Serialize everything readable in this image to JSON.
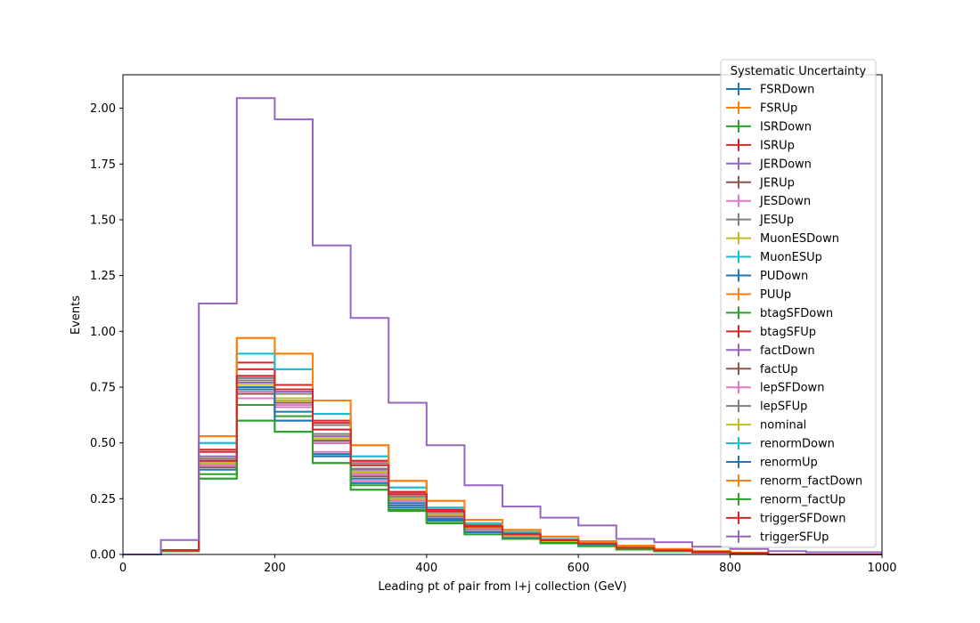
{
  "chart_data": {
    "type": "line",
    "title": "",
    "xlabel": "Leading pt of pair from l+j collection (GeV)",
    "ylabel": "Events",
    "xlim": [
      0,
      1000
    ],
    "ylim": [
      0,
      2.15
    ],
    "x_ticks": [
      0,
      200,
      400,
      600,
      800,
      1000
    ],
    "x_tick_labels": [
      "0",
      "200",
      "400",
      "600",
      "800",
      "1000"
    ],
    "y_ticks": [
      0,
      0.25,
      0.5,
      0.75,
      1.0,
      1.25,
      1.5,
      1.75,
      2.0
    ],
    "y_tick_labels": [
      "0.00",
      "0.25",
      "0.50",
      "0.75",
      "1.00",
      "1.25",
      "1.50",
      "1.75",
      "2.00"
    ],
    "grid": false,
    "legend_title": "Systematic Uncertainty",
    "legend_position": "upper-right",
    "bin_edges": [
      0,
      50,
      100,
      150,
      200,
      250,
      300,
      350,
      400,
      450,
      500,
      550,
      600,
      650,
      700,
      750,
      800,
      850,
      900,
      950,
      1000
    ],
    "series": [
      {
        "name": "FSRDown",
        "color": "#1f77b4",
        "values": [
          0,
          0.02,
          0.42,
          0.74,
          0.64,
          0.5,
          0.34,
          0.23,
          0.18,
          0.11,
          0.08,
          0.06,
          0.04,
          0.025,
          0.015,
          0.01,
          0.005,
          0,
          0,
          0
        ]
      },
      {
        "name": "FSRUp",
        "color": "#ff7f0e",
        "values": [
          0,
          0.02,
          0.41,
          0.76,
          0.7,
          0.52,
          0.37,
          0.25,
          0.18,
          0.12,
          0.085,
          0.06,
          0.045,
          0.03,
          0.02,
          0.012,
          0.006,
          0,
          0,
          0
        ]
      },
      {
        "name": "ISRDown",
        "color": "#2ca02c",
        "values": [
          0,
          0.015,
          0.36,
          0.67,
          0.62,
          0.45,
          0.31,
          0.21,
          0.15,
          0.1,
          0.075,
          0.055,
          0.04,
          0.025,
          0.015,
          0.01,
          0.005,
          0,
          0,
          0
        ]
      },
      {
        "name": "ISRUp",
        "color": "#d62728",
        "values": [
          0,
          0.02,
          0.46,
          0.83,
          0.76,
          0.59,
          0.42,
          0.28,
          0.2,
          0.13,
          0.095,
          0.07,
          0.05,
          0.03,
          0.02,
          0.012,
          0.006,
          0,
          0,
          0
        ]
      },
      {
        "name": "JERDown",
        "color": "#9467bd",
        "values": [
          0,
          0.02,
          0.44,
          0.8,
          0.73,
          0.56,
          0.4,
          0.27,
          0.2,
          0.13,
          0.09,
          0.065,
          0.05,
          0.03,
          0.02,
          0.012,
          0.006,
          0,
          0,
          0
        ]
      },
      {
        "name": "JERUp",
        "color": "#8c564b",
        "values": [
          0,
          0.02,
          0.39,
          0.72,
          0.68,
          0.5,
          0.35,
          0.24,
          0.17,
          0.11,
          0.08,
          0.06,
          0.045,
          0.025,
          0.015,
          0.01,
          0.005,
          0,
          0,
          0
        ]
      },
      {
        "name": "JESDown",
        "color": "#e377c2",
        "values": [
          0,
          0.02,
          0.4,
          0.7,
          0.66,
          0.46,
          0.33,
          0.22,
          0.16,
          0.1,
          0.075,
          0.055,
          0.04,
          0.025,
          0.015,
          0.01,
          0.005,
          0,
          0,
          0
        ]
      },
      {
        "name": "JESUp",
        "color": "#7f7f7f",
        "values": [
          0,
          0.02,
          0.43,
          0.79,
          0.76,
          0.58,
          0.41,
          0.28,
          0.2,
          0.13,
          0.09,
          0.065,
          0.05,
          0.03,
          0.02,
          0.012,
          0.006,
          0,
          0,
          0
        ]
      },
      {
        "name": "MuonESDown",
        "color": "#bcbd22",
        "values": [
          0,
          0.02,
          0.41,
          0.76,
          0.69,
          0.52,
          0.37,
          0.25,
          0.18,
          0.12,
          0.085,
          0.06,
          0.045,
          0.028,
          0.018,
          0.011,
          0.006,
          0,
          0,
          0
        ]
      },
      {
        "name": "MuonESUp",
        "color": "#17becf",
        "values": [
          0,
          0.02,
          0.5,
          0.9,
          0.83,
          0.63,
          0.44,
          0.3,
          0.21,
          0.13,
          0.1,
          0.07,
          0.055,
          0.035,
          0.02,
          0.013,
          0.007,
          0,
          0,
          0
        ]
      },
      {
        "name": "PUDown",
        "color": "#1f77b4",
        "values": [
          0,
          0.02,
          0.42,
          0.75,
          0.6,
          0.45,
          0.32,
          0.22,
          0.16,
          0.1,
          0.075,
          0.055,
          0.04,
          0.025,
          0.015,
          0.01,
          0.005,
          0,
          0,
          0
        ]
      },
      {
        "name": "PUUp",
        "color": "#ff7f0e",
        "values": [
          0,
          0.02,
          0.53,
          0.97,
          0.9,
          0.69,
          0.49,
          0.33,
          0.24,
          0.155,
          0.11,
          0.08,
          0.06,
          0.04,
          0.025,
          0.015,
          0.008,
          0,
          0,
          0
        ]
      },
      {
        "name": "btagSFDown",
        "color": "#2ca02c",
        "values": [
          0,
          0.015,
          0.34,
          0.6,
          0.55,
          0.41,
          0.29,
          0.195,
          0.14,
          0.09,
          0.07,
          0.05,
          0.038,
          0.022,
          0.014,
          0.009,
          0.005,
          0,
          0,
          0
        ]
      },
      {
        "name": "btagSFUp",
        "color": "#d62728",
        "values": [
          0,
          0.02,
          0.47,
          0.86,
          0.76,
          0.6,
          0.42,
          0.28,
          0.2,
          0.13,
          0.095,
          0.07,
          0.05,
          0.03,
          0.02,
          0.012,
          0.006,
          0,
          0,
          0
        ]
      },
      {
        "name": "factDown",
        "color": "#9467bd",
        "values": [
          0,
          0.02,
          0.42,
          0.77,
          0.7,
          0.53,
          0.38,
          0.26,
          0.19,
          0.12,
          0.085,
          0.06,
          0.045,
          0.028,
          0.018,
          0.011,
          0.006,
          0,
          0,
          0
        ]
      },
      {
        "name": "factUp",
        "color": "#8c564b",
        "values": [
          0,
          0.02,
          0.4,
          0.74,
          0.68,
          0.51,
          0.36,
          0.25,
          0.18,
          0.115,
          0.082,
          0.058,
          0.043,
          0.027,
          0.017,
          0.011,
          0.006,
          0,
          0,
          0
        ]
      },
      {
        "name": "lepSFDown",
        "color": "#e377c2",
        "values": [
          0,
          0.02,
          0.4,
          0.73,
          0.67,
          0.5,
          0.36,
          0.24,
          0.175,
          0.11,
          0.08,
          0.058,
          0.043,
          0.027,
          0.017,
          0.011,
          0.006,
          0,
          0,
          0
        ]
      },
      {
        "name": "lepSFUp",
        "color": "#7f7f7f",
        "values": [
          0,
          0.02,
          0.42,
          0.78,
          0.72,
          0.54,
          0.385,
          0.26,
          0.19,
          0.12,
          0.087,
          0.062,
          0.046,
          0.029,
          0.018,
          0.011,
          0.006,
          0,
          0,
          0
        ]
      },
      {
        "name": "nominal",
        "color": "#bcbd22",
        "values": [
          0,
          0.02,
          0.41,
          0.76,
          0.7,
          0.52,
          0.37,
          0.25,
          0.18,
          0.12,
          0.085,
          0.06,
          0.045,
          0.028,
          0.018,
          0.011,
          0.006,
          0,
          0,
          0
        ]
      },
      {
        "name": "renormDown",
        "color": "#17becf",
        "values": [
          0,
          0.02,
          0.5,
          0.9,
          0.83,
          0.63,
          0.44,
          0.3,
          0.21,
          0.14,
          0.1,
          0.07,
          0.055,
          0.034,
          0.021,
          0.013,
          0.007,
          0,
          0,
          0
        ]
      },
      {
        "name": "renormUp",
        "color": "#1f77b4",
        "values": [
          0,
          0.02,
          0.38,
          0.74,
          0.6,
          0.44,
          0.32,
          0.21,
          0.155,
          0.1,
          0.073,
          0.052,
          0.039,
          0.024,
          0.015,
          0.009,
          0.005,
          0,
          0,
          0
        ]
      },
      {
        "name": "renorm_factDown",
        "color": "#ff7f0e",
        "values": [
          0,
          0.02,
          0.53,
          0.97,
          0.9,
          0.69,
          0.49,
          0.33,
          0.24,
          0.155,
          0.11,
          0.08,
          0.06,
          0.038,
          0.024,
          0.015,
          0.008,
          0,
          0,
          0
        ]
      },
      {
        "name": "renorm_factUp",
        "color": "#2ca02c",
        "values": [
          0,
          0.015,
          0.34,
          0.6,
          0.55,
          0.41,
          0.29,
          0.2,
          0.14,
          0.09,
          0.07,
          0.05,
          0.037,
          0.022,
          0.014,
          0.009,
          0.005,
          0,
          0,
          0
        ]
      },
      {
        "name": "triggerSFDown",
        "color": "#d62728",
        "values": [
          0,
          0.02,
          0.42,
          0.8,
          0.74,
          0.56,
          0.4,
          0.27,
          0.195,
          0.125,
          0.09,
          0.064,
          0.048,
          0.03,
          0.019,
          0.012,
          0.006,
          0,
          0,
          0
        ]
      },
      {
        "name": "triggerSFUp",
        "color": "#9467bd",
        "values": [
          0,
          0.065,
          1.125,
          2.045,
          1.95,
          1.385,
          1.06,
          0.68,
          0.49,
          0.31,
          0.215,
          0.165,
          0.13,
          0.07,
          0.055,
          0.035,
          0.025,
          0.015,
          0.01,
          0.01
        ]
      }
    ]
  }
}
